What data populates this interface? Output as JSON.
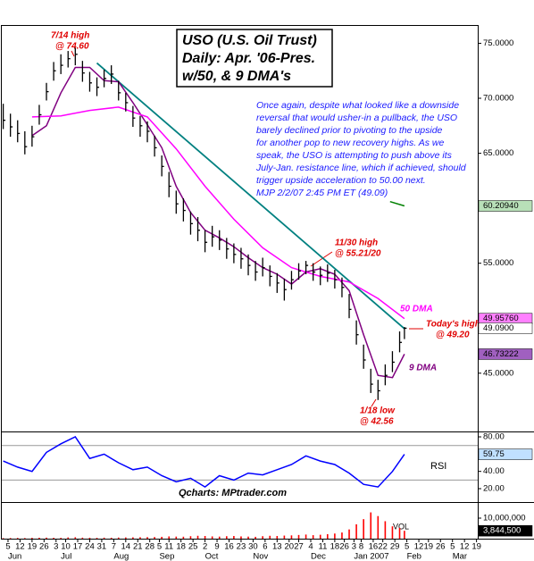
{
  "chart_data": {
    "type": "ohlc",
    "title_lines": [
      "USO (U.S. Oil Trust)",
      "Daily: Apr. '06-Pres.",
      "w/50, & 9 DMA's"
    ],
    "comment": [
      "Once again, despite what looked like a downside",
      "reversal that would usher-in a pullback, the USO",
      "barely declined prior to pivoting to the upside",
      "for another pop to new recovery highs. As we",
      "speak, the USO is attempting to push above its",
      "July-Jan. resistance line, which if achieved, should",
      "trigger upside acceleration to 50.00 next.",
      "MJP 2/2/07 2:45 PM ET (49.09)"
    ],
    "annotations": {
      "jul_high": [
        "7/14 high",
        "@ 74.60"
      ],
      "nov_high": [
        "11/30 high",
        "@ 55.21/20"
      ],
      "today_high": [
        "Today's high",
        "@ 49.20"
      ],
      "jan_low": [
        "1/18 low",
        "@ 42.56"
      ]
    },
    "credit": "Qcharts: MPtrader.com",
    "color": "#000000",
    "x": [
      0,
      3,
      6,
      9,
      12,
      15,
      18,
      21,
      24,
      27,
      30,
      33,
      36,
      39,
      42,
      45,
      48,
      51,
      54,
      57,
      60,
      63,
      66,
      69,
      72,
      75,
      78,
      81,
      84,
      87,
      90,
      93,
      96,
      99,
      102,
      105,
      108,
      111,
      114,
      117,
      120,
      123,
      126,
      129,
      132,
      135,
      138,
      141,
      144,
      147,
      150,
      153,
      156,
      159,
      162,
      165,
      167
    ],
    "high": [
      69.5,
      68.6,
      68.0,
      67.0,
      67.5,
      69.4,
      71.4,
      73.3,
      74.0,
      74.3,
      74.6,
      73.4,
      72.4,
      71.9,
      72.6,
      73.0,
      71.6,
      70.5,
      69.3,
      68.4,
      67.9,
      66.6,
      64.8,
      63.3,
      61.6,
      60.9,
      59.7,
      59.2,
      58.0,
      58.4,
      58.0,
      57.3,
      56.8,
      56.4,
      55.8,
      55.2,
      55.5,
      54.8,
      54.1,
      53.6,
      54.3,
      55.0,
      55.21,
      55.0,
      54.7,
      54.9,
      54.4,
      53.7,
      52.2,
      49.8,
      47.6,
      45.4,
      44.4,
      45.8,
      47.0,
      48.8,
      49.2
    ],
    "low": [
      67.2,
      66.5,
      66.0,
      64.9,
      65.6,
      67.6,
      69.8,
      71.6,
      72.2,
      72.8,
      73.0,
      71.5,
      70.6,
      70.2,
      71.0,
      71.3,
      69.8,
      68.8,
      67.4,
      66.5,
      66.0,
      64.7,
      62.9,
      61.0,
      59.5,
      58.8,
      57.6,
      57.0,
      56.0,
      56.5,
      56.2,
      55.4,
      55.0,
      54.5,
      53.9,
      53.4,
      53.8,
      52.9,
      52.3,
      51.6,
      52.6,
      53.5,
      54.0,
      53.4,
      53.0,
      53.3,
      52.7,
      51.9,
      50.0,
      47.6,
      45.4,
      43.2,
      42.56,
      43.9,
      45.1,
      46.9,
      48.1
    ],
    "close": [
      68.0,
      67.4,
      66.8,
      65.6,
      66.5,
      68.5,
      70.6,
      72.5,
      73.0,
      73.6,
      74.0,
      72.3,
      71.4,
      71.0,
      71.8,
      72.2,
      70.5,
      69.6,
      68.2,
      67.5,
      67.0,
      65.5,
      63.8,
      62.0,
      60.4,
      59.8,
      58.6,
      58.0,
      56.9,
      57.4,
      57.1,
      56.3,
      55.8,
      55.4,
      54.8,
      54.2,
      54.6,
      53.8,
      53.2,
      52.6,
      53.5,
      54.3,
      54.8,
      54.2,
      53.9,
      54.1,
      53.5,
      52.8,
      50.8,
      48.5,
      46.2,
      44.0,
      43.4,
      44.8,
      46.0,
      47.8,
      49.09
    ],
    "series": [
      {
        "name": "9 DMA",
        "color": "#800080",
        "x": [
          12,
          18,
          24,
          30,
          36,
          42,
          48,
          54,
          60,
          66,
          72,
          78,
          84,
          90,
          96,
          102,
          108,
          114,
          120,
          126,
          132,
          138,
          144,
          150,
          156,
          162,
          167
        ],
        "values": [
          66.6,
          67.5,
          70.5,
          72.8,
          72.8,
          71.6,
          71.5,
          69.6,
          67.6,
          65.5,
          62.0,
          59.6,
          58.0,
          57.3,
          56.5,
          55.5,
          54.6,
          54.0,
          53.1,
          54.2,
          54.5,
          54.0,
          52.5,
          48.5,
          44.8,
          44.6,
          46.73222
        ]
      },
      {
        "name": "50 DMA",
        "color": "#ff00ff",
        "x": [
          12,
          24,
          36,
          48,
          60,
          72,
          84,
          96,
          108,
          120,
          132,
          144,
          156,
          167
        ],
        "values": [
          68.3,
          68.4,
          68.9,
          69.2,
          68.3,
          65.4,
          62.0,
          59.0,
          56.4,
          54.6,
          53.8,
          53.3,
          51.8,
          49.9576
        ]
      }
    ],
    "trendline": {
      "color": "#008080",
      "x": [
        39,
        167
      ],
      "values": [
        73.2,
        49.05
      ]
    },
    "green_line": {
      "color": "#008000",
      "x": [
        161,
        167
      ],
      "values": [
        60.6,
        60.2094
      ]
    },
    "last_values": [
      {
        "value": 60.2094,
        "label": "60.20940",
        "color": "#b8e0b8"
      },
      {
        "value": 49.9576,
        "label": "49.95760",
        "color": "#ff80ff"
      },
      {
        "value": 49.09,
        "label": "49.0900",
        "color": "#ffffff"
      },
      {
        "value": 46.73222,
        "label": "46.73222",
        "color": "#a060c0"
      }
    ],
    "xlim": [
      0,
      199
    ],
    "xticks": [
      {
        "value": 2,
        "label": "5"
      },
      {
        "value": 7,
        "label": "12"
      },
      {
        "value": 12,
        "label": "19"
      },
      {
        "value": 17,
        "label": "26"
      },
      {
        "value": 22,
        "label": "3"
      },
      {
        "value": 26,
        "label": "10"
      },
      {
        "value": 31,
        "label": "17"
      },
      {
        "value": 36,
        "label": "24"
      },
      {
        "value": 41,
        "label": "31"
      },
      {
        "value": 46,
        "label": "7"
      },
      {
        "value": 51,
        "label": "14"
      },
      {
        "value": 56,
        "label": "21"
      },
      {
        "value": 61,
        "label": "28"
      },
      {
        "value": 65,
        "label": "5"
      },
      {
        "value": 69,
        "label": "11"
      },
      {
        "value": 74,
        "label": "18"
      },
      {
        "value": 79,
        "label": "25"
      },
      {
        "value": 84,
        "label": "2"
      },
      {
        "value": 89,
        "label": "9"
      },
      {
        "value": 94,
        "label": "16"
      },
      {
        "value": 99,
        "label": "23"
      },
      {
        "value": 104,
        "label": "30"
      },
      {
        "value": 109,
        "label": "6"
      },
      {
        "value": 114,
        "label": "13"
      },
      {
        "value": 119,
        "label": "20"
      },
      {
        "value": 123,
        "label": "27"
      },
      {
        "value": 128,
        "label": "4"
      },
      {
        "value": 133,
        "label": "11"
      },
      {
        "value": 138,
        "label": "18"
      },
      {
        "value": 142,
        "label": "26"
      },
      {
        "value": 146,
        "label": "3"
      },
      {
        "value": 149,
        "label": "8"
      },
      {
        "value": 154,
        "label": "16"
      },
      {
        "value": 158,
        "label": "22"
      },
      {
        "value": 163,
        "label": "29"
      },
      {
        "value": 168,
        "label": "5"
      },
      {
        "value": 173,
        "label": "12"
      },
      {
        "value": 177,
        "label": "19"
      },
      {
        "value": 182,
        "label": "26"
      },
      {
        "value": 187,
        "label": "5"
      },
      {
        "value": 192,
        "label": "12"
      },
      {
        "value": 197,
        "label": "19"
      }
    ],
    "month_labels": [
      {
        "value": 2,
        "label": "Jun"
      },
      {
        "value": 24,
        "label": "Jul"
      },
      {
        "value": 46,
        "label": "Aug"
      },
      {
        "value": 65,
        "label": "Sep"
      },
      {
        "value": 84,
        "label": "Oct"
      },
      {
        "value": 104,
        "label": "Nov"
      },
      {
        "value": 128,
        "label": "Dec"
      },
      {
        "value": 146,
        "label": "Jan 2007"
      },
      {
        "value": 168,
        "label": "Feb"
      },
      {
        "value": 187,
        "label": "Mar"
      }
    ],
    "ylim": [
      39.7,
      76.5
    ],
    "yticks": [
      {
        "value": 75,
        "label": "75.0000"
      },
      {
        "value": 70,
        "label": "70.0000"
      },
      {
        "value": 65,
        "label": "65.0000"
      },
      {
        "value": 55,
        "label": "55.0000"
      },
      {
        "value": 45,
        "label": "45.0000"
      }
    ],
    "rsi": {
      "label": "RSI",
      "color": "#0000ff",
      "ylim": [
        4.5,
        85.2
      ],
      "yticks": [
        {
          "value": 80,
          "label": "80.00"
        },
        {
          "value": 40,
          "label": "40.00"
        },
        {
          "value": 20,
          "label": "20.00"
        }
      ],
      "guides": [
        70,
        30
      ],
      "x": [
        0,
        6,
        12,
        18,
        24,
        30,
        36,
        42,
        48,
        54,
        60,
        66,
        72,
        78,
        84,
        90,
        96,
        102,
        108,
        114,
        120,
        126,
        132,
        138,
        144,
        150,
        156,
        162,
        167
      ],
      "values": [
        52,
        45,
        40,
        62,
        72,
        80,
        55,
        60,
        50,
        42,
        45,
        35,
        28,
        32,
        22,
        35,
        30,
        38,
        36,
        42,
        48,
        58,
        52,
        48,
        38,
        25,
        22,
        40,
        59.75
      ],
      "last_value": {
        "value": 59.75,
        "label": "59.75",
        "color": "#c0e0ff"
      }
    },
    "volume": {
      "label": "VOL",
      "color": "#ff0000",
      "ylim": [
        0,
        17400000
      ],
      "yticks": [
        {
          "value": 10000000,
          "label": "10,000,000"
        }
      ],
      "values": [
        250000,
        300000,
        350000,
        280000,
        400000,
        450000,
        500000,
        420000,
        380000,
        600000,
        700000,
        500000,
        450000,
        400000,
        500000,
        450000,
        550000,
        600000,
        650000,
        700000,
        750000,
        800000,
        900000,
        1100000,
        1000000,
        950000,
        1200000,
        1400000,
        1300000,
        1100000,
        1000000,
        1200000,
        1300000,
        1100000,
        1000000,
        900000,
        1200000,
        1400000,
        1300000,
        1500000,
        1600000,
        1800000,
        2000000,
        1700000,
        1900000,
        2200000,
        2500000,
        3000000,
        4500000,
        7000000,
        9500000,
        12800000,
        11000000,
        8500000,
        6000000,
        5200000,
        3844500
      ],
      "last_value": {
        "value": 3844500,
        "label": "3,844,500",
        "color": "#000000"
      }
    }
  }
}
